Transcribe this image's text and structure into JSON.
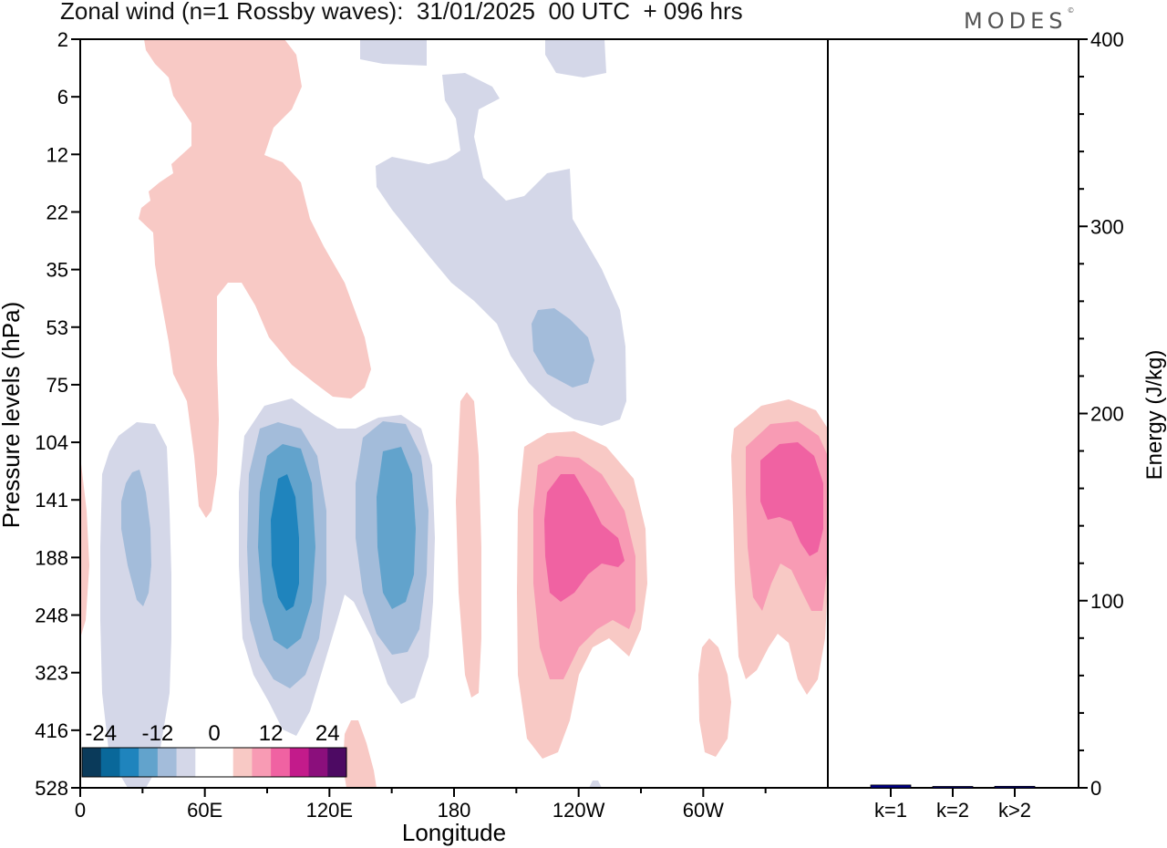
{
  "header": {
    "title": "Zonal wind (n=1 Rossby waves):  31/01/2025  00 UTC  + 096 hrs",
    "brand": "MODES",
    "brand_mark": "©"
  },
  "chart_data": [
    {
      "type": "heatmap",
      "title": "Zonal wind (n=1 Rossby waves):  31/01/2025  00 UTC  + 096 hrs",
      "xlabel": "Longitude",
      "ylabel": "Pressure levels (hPa)",
      "x_ticks": [
        "0",
        "60E",
        "120E",
        "180",
        "120W",
        "60W"
      ],
      "x_tick_degrees": [
        0,
        60,
        120,
        180,
        240,
        300
      ],
      "xlim": [
        0,
        360
      ],
      "y_ticks": [
        "2",
        "6",
        "12",
        "22",
        "35",
        "53",
        "75",
        "104",
        "141",
        "188",
        "248",
        "323",
        "416",
        "528"
      ],
      "y_scale": "model levels (categorical, top to bottom)",
      "colorbar": {
        "labels": [
          "-24",
          "-12",
          "0",
          "12",
          "24"
        ],
        "colors": [
          "#0a3a5a",
          "#09689a",
          "#1f84bd",
          "#62a3cc",
          "#a3bcda",
          "#d4d7e8",
          "#ffffff",
          "#ffffff",
          "#f8c9c5",
          "#f89bb4",
          "#f062a2",
          "#c31b8b",
          "#8b0f7c",
          "#4d0a63"
        ],
        "placement": "bottom-left"
      },
      "grid": false
    },
    {
      "type": "bar",
      "categories": [
        "k=1",
        "k=2",
        "k>2"
      ],
      "values": [
        1.5,
        0.6,
        0.8
      ],
      "ylabel": "Energy (J/kg)",
      "ylim": [
        0,
        400
      ],
      "y_ticks": [
        "0",
        "100",
        "200",
        "300",
        "400"
      ],
      "bar_color": "#00008b",
      "axis_side": "right"
    }
  ]
}
